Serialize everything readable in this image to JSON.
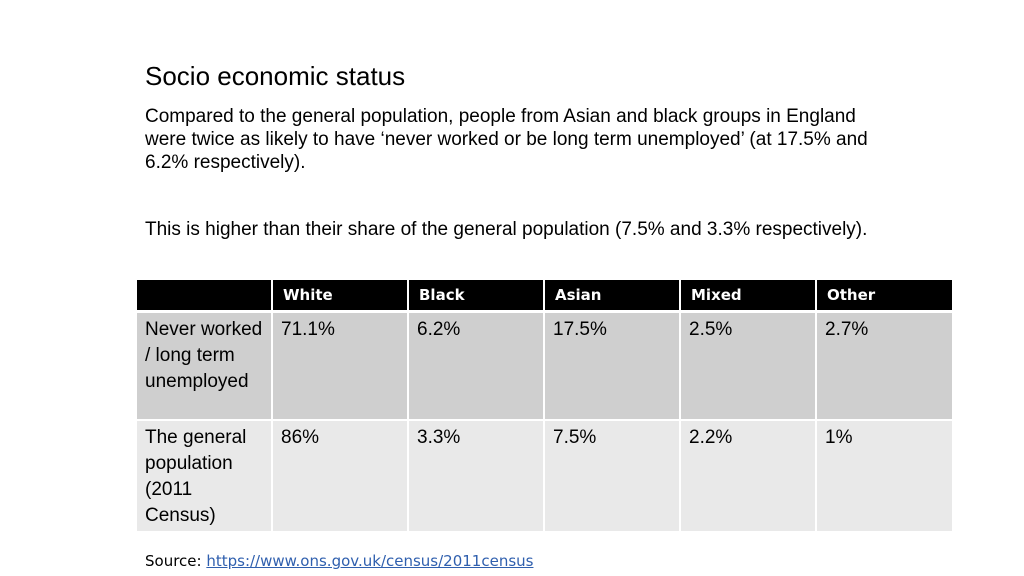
{
  "title": "Socio economic status",
  "paragraphs": [
    "Compared to the general population, people from Asian and black groups in England were twice as likely to have ‘never worked or be long term unemployed’ (at 17.5% and 6.2% respectively).",
    "This is higher than their share of the general population (7.5% and 3.3% respectively)."
  ],
  "table": {
    "headers": [
      "",
      "White",
      "Black",
      "Asian",
      "Mixed",
      "Other"
    ],
    "rows": [
      {
        "label": "Never worked / long term unemployed",
        "values": [
          "71.1%",
          "6.2%",
          "17.5%",
          "2.5%",
          "2.7%"
        ]
      },
      {
        "label": "The general population (2011 Census)",
        "values": [
          "86%",
          "3.3%",
          "7.5%",
          "2.2%",
          "1%"
        ]
      }
    ]
  },
  "source": {
    "label": "Source: ",
    "link_text": "https://www.ons.gov.uk/census/2011census"
  },
  "colors": {
    "header_bg": "#000000",
    "row1_bg": "#cfcfcf",
    "row2_bg": "#e9e9e9",
    "link": "#2f5fae"
  }
}
